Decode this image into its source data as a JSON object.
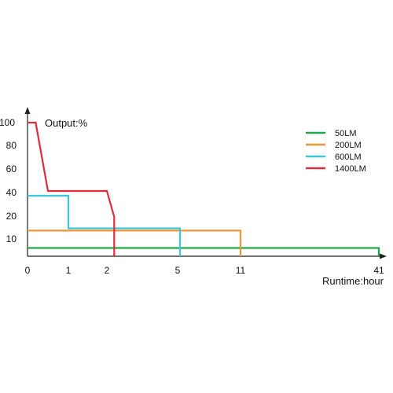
{
  "chart_data": {
    "type": "line",
    "ylabel": "Output:%",
    "xlabel": "Runtime:hour",
    "x_ticks": [
      "0",
      "1",
      "2",
      "5",
      "11",
      "41"
    ],
    "y_ticks": [
      "100",
      "80",
      "60",
      "40",
      "20",
      "10"
    ],
    "series": [
      {
        "name": "50LM",
        "color": "#1fa64a",
        "points": [
          [
            0,
            5
          ],
          [
            41,
            5
          ],
          [
            41,
            0
          ]
        ]
      },
      {
        "name": "200LM",
        "color": "#f0943a",
        "points": [
          [
            0,
            14
          ],
          [
            11,
            14
          ],
          [
            11,
            0
          ]
        ]
      },
      {
        "name": "600LM",
        "color": "#3cc8dc",
        "points": [
          [
            0,
            38
          ],
          [
            1,
            38
          ],
          [
            1,
            15
          ],
          [
            5,
            15
          ],
          [
            5,
            0
          ]
        ]
      },
      {
        "name": "1400LM",
        "color": "#dc2e3e",
        "points": [
          [
            0,
            100
          ],
          [
            0.2,
            100
          ],
          [
            0.5,
            42
          ],
          [
            2,
            42
          ],
          [
            2.3,
            20
          ],
          [
            2.3,
            0
          ]
        ]
      }
    ]
  }
}
